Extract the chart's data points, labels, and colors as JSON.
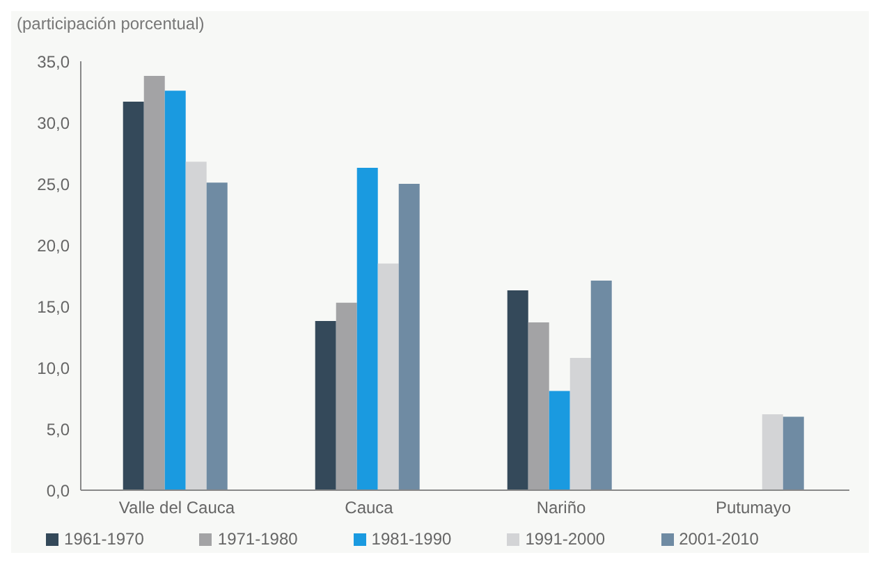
{
  "chart_data": {
    "type": "bar",
    "subtitle": "(participación porcentual)",
    "categories": [
      "Valle del Cauca",
      "Cauca",
      "Nariño",
      "Putumayo"
    ],
    "series": [
      {
        "name": "1961-1970",
        "color": "#34495a",
        "values": [
          31.7,
          13.8,
          16.3,
          null
        ]
      },
      {
        "name": "1971-1980",
        "color": "#a3a3a5",
        "values": [
          33.8,
          15.3,
          13.7,
          null
        ]
      },
      {
        "name": "1981-1990",
        "color": "#1a9ae0",
        "values": [
          32.6,
          26.3,
          8.1,
          null
        ]
      },
      {
        "name": "1991-2000",
        "color": "#d3d4d6",
        "values": [
          26.8,
          18.5,
          10.8,
          6.2
        ]
      },
      {
        "name": "2001-2010",
        "color": "#6f8ba3",
        "values": [
          25.1,
          25.0,
          17.1,
          6.0
        ]
      }
    ],
    "ylim": [
      0,
      35
    ],
    "yticks": [
      {
        "value": 0,
        "label": "0,0"
      },
      {
        "value": 5,
        "label": "5,0"
      },
      {
        "value": 10,
        "label": "10,0"
      },
      {
        "value": 15,
        "label": "15,0"
      },
      {
        "value": 20,
        "label": "20,0"
      },
      {
        "value": 25,
        "label": "25,0"
      },
      {
        "value": 30,
        "label": "30,0"
      },
      {
        "value": 35,
        "label": "35,0"
      }
    ],
    "grid": false,
    "legend": "bottom"
  }
}
